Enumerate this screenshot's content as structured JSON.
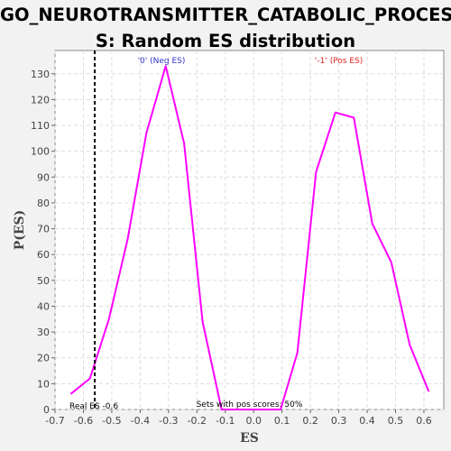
{
  "chart_data": {
    "type": "line",
    "title_lines": [
      "GO_NEUROTRANSMITTER_CATABOLIC_PROCES",
      "S: Random ES distribution"
    ],
    "xlabel": "ES",
    "ylabel": "P(ES)",
    "xlim": [
      -0.7,
      0.67
    ],
    "ylim": [
      0,
      139
    ],
    "x_ticks": [
      "-0.7",
      "-0.6",
      "-0.5",
      "-0.4",
      "-0.3",
      "-0.2",
      "-0.1",
      "0.0",
      "0.1",
      "0.2",
      "0.3",
      "0.4",
      "0.5",
      "0.6"
    ],
    "x_tick_values": [
      -0.7,
      -0.6,
      -0.5,
      -0.4,
      -0.3,
      -0.2,
      -0.1,
      0.0,
      0.1,
      0.2,
      0.3,
      0.4,
      0.5,
      0.6
    ],
    "y_ticks": [
      "0",
      "10",
      "20",
      "30",
      "40",
      "50",
      "60",
      "70",
      "80",
      "90",
      "100",
      "110",
      "120",
      "130"
    ],
    "y_tick_values": [
      0,
      10,
      20,
      30,
      40,
      50,
      60,
      70,
      80,
      90,
      100,
      110,
      120,
      130
    ],
    "grid": true,
    "series": [
      {
        "color": "#ff00ff",
        "x": [
          -0.645,
          -0.577,
          -0.51,
          -0.444,
          -0.378,
          -0.31,
          -0.245,
          -0.18,
          -0.113,
          0.095,
          0.154,
          0.22,
          0.288,
          0.353,
          0.418,
          0.485,
          0.55,
          0.617
        ],
        "y": [
          6,
          12,
          35,
          66,
          107,
          133,
          103,
          34,
          0,
          0,
          22,
          92,
          115,
          113,
          72,
          57,
          25,
          7
        ]
      }
    ],
    "real_es": {
      "x": -0.56,
      "label": "Real ES -0.6",
      "color": "#000000"
    },
    "annotations": {
      "neg_label": "'0' (Neg ES)",
      "neg_color": "#3333cc",
      "pos_label": "'-1' (Pos ES)",
      "pos_color": "#dd2222",
      "pos_scores": "Sets with pos scores: 50%"
    }
  }
}
